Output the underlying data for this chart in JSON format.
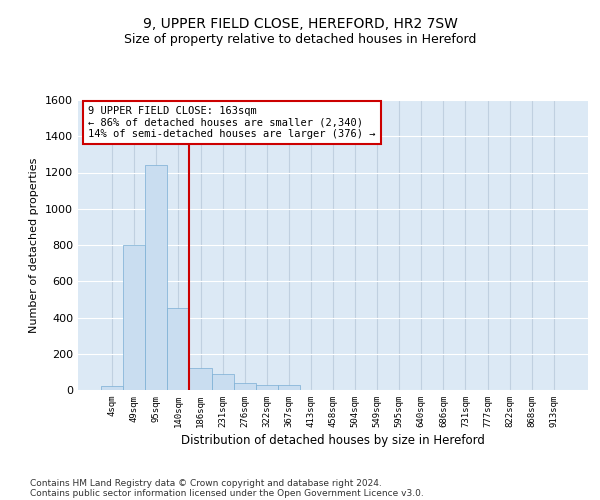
{
  "title": "9, UPPER FIELD CLOSE, HEREFORD, HR2 7SW",
  "subtitle": "Size of property relative to detached houses in Hereford",
  "xlabel": "Distribution of detached houses by size in Hereford",
  "ylabel": "Number of detached properties",
  "categories": [
    "4sqm",
    "49sqm",
    "95sqm",
    "140sqm",
    "186sqm",
    "231sqm",
    "276sqm",
    "322sqm",
    "367sqm",
    "413sqm",
    "458sqm",
    "504sqm",
    "549sqm",
    "595sqm",
    "640sqm",
    "686sqm",
    "731sqm",
    "777sqm",
    "822sqm",
    "868sqm",
    "913sqm"
  ],
  "values": [
    20,
    800,
    1240,
    450,
    120,
    90,
    40,
    30,
    30,
    0,
    0,
    0,
    0,
    0,
    0,
    0,
    0,
    0,
    0,
    0,
    0
  ],
  "bar_color": "#c9ddf0",
  "bar_edge_color": "#7aaed4",
  "vline_index": 3.5,
  "vline_color": "#cc0000",
  "annotation_text": "9 UPPER FIELD CLOSE: 163sqm\n← 86% of detached houses are smaller (2,340)\n14% of semi-detached houses are larger (376) →",
  "annotation_box_color": "#cc0000",
  "ylim": [
    0,
    1600
  ],
  "yticks": [
    0,
    200,
    400,
    600,
    800,
    1000,
    1200,
    1400,
    1600
  ],
  "grid_color": "#c8d8e8",
  "bg_color": "#dce9f5",
  "footnote_line1": "Contains HM Land Registry data © Crown copyright and database right 2024.",
  "footnote_line2": "Contains public sector information licensed under the Open Government Licence v3.0.",
  "title_fontsize": 10,
  "subtitle_fontsize": 9
}
